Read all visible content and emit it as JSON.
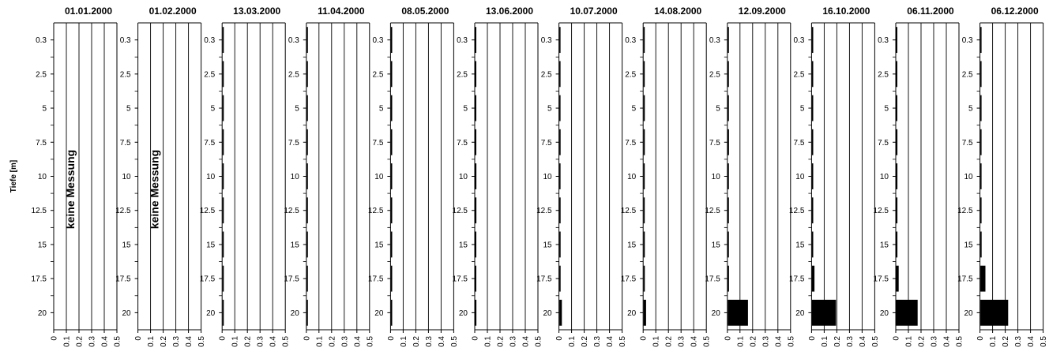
{
  "chart_data": {
    "type": "bar",
    "orientation": "horizontal",
    "ylabel": "Tiefe [m]",
    "depths": [
      0.3,
      2.5,
      5,
      7.5,
      10,
      12.5,
      15,
      17.5,
      20
    ],
    "depth_labels": [
      "0.3",
      "2.5",
      "5",
      "7.5",
      "10",
      "12.5",
      "15",
      "17.5",
      "20"
    ],
    "x_ticks": [
      "0",
      "0.1",
      "0.2",
      "0.3",
      "0.4",
      "0.5"
    ],
    "xlim": [
      0,
      0.5
    ],
    "no_data_label": "keine Messung",
    "panels": [
      {
        "title": "01.01.2000",
        "no_data": true,
        "values": []
      },
      {
        "title": "01.02.2000",
        "no_data": true,
        "values": []
      },
      {
        "title": "13.03.2000",
        "no_data": false,
        "values": [
          0.01,
          0.01,
          0.01,
          0.01,
          0.01,
          0.01,
          0.01,
          0.01,
          0.01
        ]
      },
      {
        "title": "11.04.2000",
        "no_data": false,
        "values": [
          0.007,
          0.007,
          0.007,
          0.007,
          0.007,
          0.007,
          0.007,
          0.007,
          0.007
        ]
      },
      {
        "title": "08.05.2000",
        "no_data": false,
        "values": [
          0.01,
          0.01,
          0.01,
          0.01,
          0.01,
          0.01,
          0.01,
          0.01,
          0.01
        ]
      },
      {
        "title": "13.06.2000",
        "no_data": false,
        "values": [
          0.007,
          0.007,
          0.007,
          0.007,
          0.01,
          0.01,
          0.007,
          0.007,
          0.01
        ]
      },
      {
        "title": "10.07.2000",
        "no_data": false,
        "values": [
          0.007,
          0.007,
          0.007,
          0.01,
          0.007,
          0.01,
          0.01,
          0.01,
          0.02
        ]
      },
      {
        "title": "14.08.2000",
        "no_data": false,
        "values": [
          0.007,
          0.007,
          0.01,
          0.01,
          0.007,
          0.007,
          0.01,
          0.01,
          0.02
        ]
      },
      {
        "title": "12.09.2000",
        "no_data": false,
        "values": [
          0.007,
          0.007,
          0.007,
          0.01,
          0.007,
          0.007,
          0.007,
          0.01,
          0.16
        ]
      },
      {
        "title": "16.10.2000",
        "no_data": false,
        "values": [
          0.01,
          0.01,
          0.01,
          0.01,
          0.01,
          0.01,
          0.01,
          0.02,
          0.19
        ]
      },
      {
        "title": "06.11.2000",
        "no_data": false,
        "values": [
          0.007,
          0.007,
          0.007,
          0.01,
          0.01,
          0.01,
          0.01,
          0.02,
          0.17
        ]
      },
      {
        "title": "06.12.2000",
        "no_data": false,
        "values": [
          0.007,
          0.007,
          0.007,
          0.007,
          0.007,
          0.007,
          0.01,
          0.04,
          0.22
        ]
      }
    ]
  }
}
